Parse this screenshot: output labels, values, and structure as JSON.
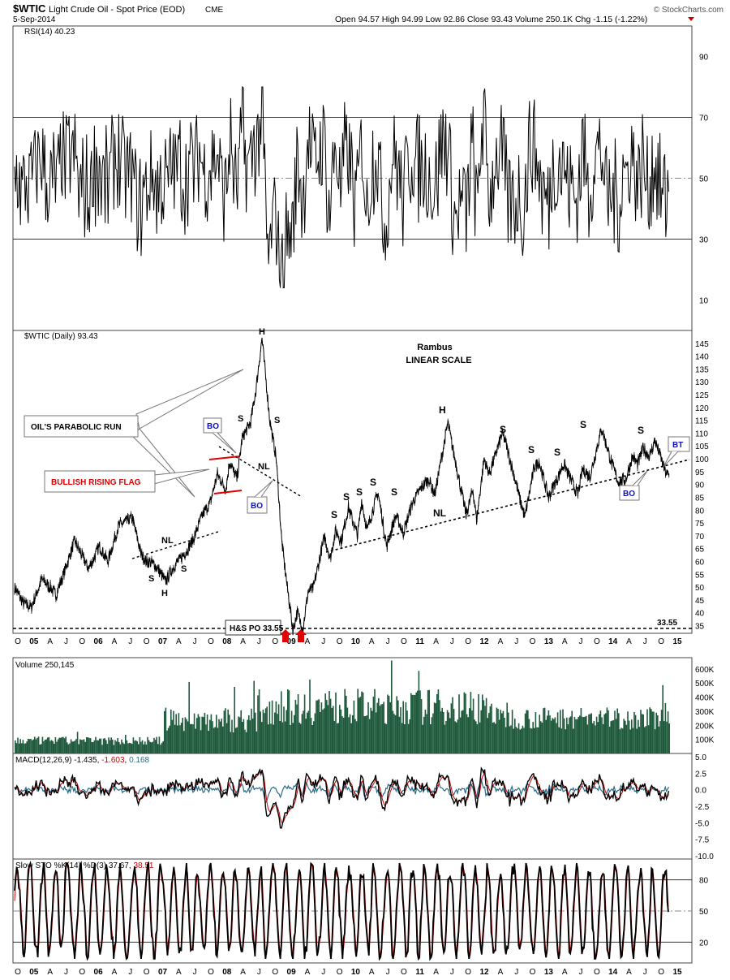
{
  "header": {
    "symbol": "$WTIC",
    "name": "Light Crude Oil - Spot Price (EOD)",
    "exchange": "CME",
    "date": "5-Sep-2014",
    "quote": "Open 94.57  High 94.99  Low 92.86  Close 93.43  Volume 250.1K  Chg -1.15 (-1.22%)",
    "watermark": "© StockCharts.com"
  },
  "colors": {
    "price": "#000000",
    "volume": "#1f5a3c",
    "macd_signal": "#cc0000",
    "macd_hist": "#2a6a8a",
    "annotation_red": "#e00000",
    "annotation_blue": "#1010c0",
    "grid": "#999999"
  },
  "time_axis": {
    "labels": [
      "O",
      "05",
      "A",
      "J",
      "O",
      "06",
      "A",
      "J",
      "O",
      "07",
      "A",
      "J",
      "O",
      "08",
      "A",
      "J",
      "O",
      "09",
      "A",
      "J",
      "O",
      "10",
      "A",
      "J",
      "O",
      "11",
      "A",
      "J",
      "O",
      "12",
      "A",
      "J",
      "O",
      "13",
      "A",
      "J",
      "O",
      "14",
      "A",
      "J",
      "O",
      "15"
    ],
    "range": [
      "2004-10-01",
      "2015-01-01"
    ]
  },
  "panels": {
    "rsi": {
      "title": "RSI(14) 40.23",
      "ticks": [
        90,
        70,
        50,
        30,
        10
      ],
      "levels": [
        70,
        50,
        30
      ],
      "ylim": [
        0,
        100
      ]
    },
    "price": {
      "title": "$WTIC (Daily) 93.43",
      "ticks": [
        35,
        40,
        45,
        50,
        55,
        60,
        65,
        70,
        75,
        80,
        85,
        90,
        95,
        100,
        105,
        110,
        115,
        120,
        125,
        130,
        135,
        140,
        145
      ],
      "ylim": [
        32,
        150
      ],
      "last_label": "33.55"
    },
    "volume": {
      "title": "Volume 250,145",
      "ticks": [
        "100K",
        "200K",
        "300K",
        "400K",
        "500K",
        "600K"
      ],
      "ylim": [
        0,
        680000
      ]
    },
    "macd": {
      "title_prefix": "MACD(12,26,9) -1.435, ",
      "signal_value": "-1.603",
      "hist_value": "0.168",
      "ticks": [
        "5.0",
        "2.5",
        "0.0",
        "-2.5",
        "-5.0",
        "-7.5",
        "-10.0"
      ],
      "ylim": [
        -10.5,
        5.5
      ]
    },
    "sto": {
      "title_prefix": "Slow STO %K(14) %D(3) 37.67, ",
      "d_value": "38.51",
      "ticks": [
        80,
        50,
        20
      ],
      "levels": [
        80,
        50,
        20
      ],
      "ylim": [
        0,
        100
      ]
    }
  },
  "annotations": {
    "rambus": "Rambus",
    "scale": "LINEAR SCALE",
    "parabolic": "OIL'S PARABOLIC RUN",
    "flag": "BULLISH RISING FLAG",
    "bo": "BO",
    "bt": "BT",
    "hs_po": "H&S PO 33.55",
    "nl": "NL",
    "h": "H",
    "s": "S"
  },
  "chart_data": {
    "type": "line",
    "title": "$WTIC (Daily) 93.43",
    "series": [
      {
        "name": "$WTIC (Daily)",
        "points": [
          [
            "2004-10-01",
            50
          ],
          [
            "2004-11-15",
            44
          ],
          [
            "2005-01-01",
            42
          ],
          [
            "2005-03-01",
            53
          ],
          [
            "2005-04-15",
            50
          ],
          [
            "2005-05-20",
            47
          ],
          [
            "2005-08-30",
            68
          ],
          [
            "2005-11-15",
            57
          ],
          [
            "2006-01-15",
            66
          ],
          [
            "2006-03-01",
            60
          ],
          [
            "2006-05-01",
            74
          ],
          [
            "2006-07-15",
            77
          ],
          [
            "2006-09-01",
            63
          ],
          [
            "2006-10-01",
            60
          ],
          [
            "2006-11-15",
            59
          ],
          [
            "2007-01-15",
            52
          ],
          [
            "2007-03-01",
            58
          ],
          [
            "2007-05-01",
            63
          ],
          [
            "2007-06-15",
            68
          ],
          [
            "2007-08-01",
            77
          ],
          [
            "2007-09-20",
            83
          ],
          [
            "2007-10-30",
            94
          ],
          [
            "2007-12-15",
            88
          ],
          [
            "2008-01-05",
            99
          ],
          [
            "2008-02-15",
            92
          ],
          [
            "2008-03-15",
            108
          ],
          [
            "2008-05-01",
            114
          ],
          [
            "2008-05-30",
            127
          ],
          [
            "2008-07-03",
            147
          ],
          [
            "2008-08-15",
            115
          ],
          [
            "2008-09-20",
            100
          ],
          [
            "2008-10-20",
            68
          ],
          [
            "2008-11-20",
            50
          ],
          [
            "2008-12-21",
            33.5
          ],
          [
            "2009-01-15",
            40
          ],
          [
            "2009-02-15",
            34
          ],
          [
            "2009-03-15",
            48
          ],
          [
            "2009-04-15",
            50
          ],
          [
            "2009-05-15",
            60
          ],
          [
            "2009-06-15",
            70
          ],
          [
            "2009-07-15",
            61
          ],
          [
            "2009-08-15",
            72
          ],
          [
            "2009-09-15",
            68
          ],
          [
            "2009-10-25",
            81
          ],
          [
            "2009-12-15",
            70
          ],
          [
            "2010-01-06",
            84
          ],
          [
            "2010-02-05",
            72
          ],
          [
            "2010-04-06",
            87
          ],
          [
            "2010-05-25",
            66
          ],
          [
            "2010-07-15",
            78
          ],
          [
            "2010-08-25",
            71
          ],
          [
            "2010-10-15",
            83
          ],
          [
            "2010-12-15",
            90
          ],
          [
            "2011-01-15",
            92
          ],
          [
            "2011-02-15",
            86
          ],
          [
            "2011-04-29",
            114
          ],
          [
            "2011-06-15",
            97
          ],
          [
            "2011-08-08",
            78
          ],
          [
            "2011-09-15",
            88
          ],
          [
            "2011-10-05",
            76
          ],
          [
            "2011-11-15",
            100
          ],
          [
            "2011-12-15",
            94
          ],
          [
            "2012-02-24",
            110
          ],
          [
            "2012-03-15",
            106
          ],
          [
            "2012-06-28",
            77
          ],
          [
            "2012-08-20",
            97
          ],
          [
            "2012-09-15",
            99
          ],
          [
            "2012-11-07",
            85
          ],
          [
            "2013-01-30",
            98
          ],
          [
            "2013-04-18",
            86
          ],
          [
            "2013-05-15",
            96
          ],
          [
            "2013-06-24",
            93
          ],
          [
            "2013-08-28",
            112
          ],
          [
            "2013-10-15",
            100
          ],
          [
            "2013-11-27",
            91
          ],
          [
            "2014-01-09",
            92
          ],
          [
            "2014-02-15",
            101
          ],
          [
            "2014-03-15",
            98
          ],
          [
            "2014-04-15",
            104
          ],
          [
            "2014-05-20",
            101
          ],
          [
            "2014-06-20",
            107
          ],
          [
            "2014-07-15",
            102
          ],
          [
            "2014-08-15",
            95
          ],
          [
            "2014-09-05",
            93.43
          ]
        ]
      }
    ],
    "xlim": [
      "2004-10-01",
      "2015-01-01"
    ],
    "ylim": [
      32,
      150
    ],
    "grid": false
  }
}
